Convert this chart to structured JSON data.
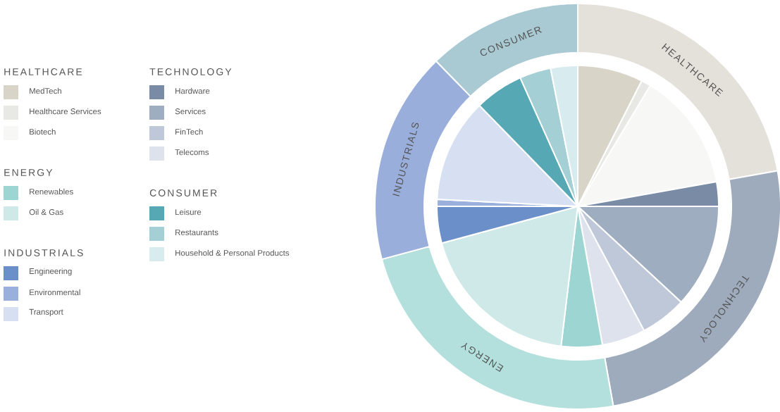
{
  "chart_data": [
    {
      "type": "pie",
      "legend": "left",
      "categories": [
        "MedTech",
        "Healthcare Services",
        "Biotech",
        "Hardware",
        "Services",
        "FinTech",
        "Telecoms",
        "Renewables",
        "Oil & Gas",
        "Engineering",
        "Environmental",
        "Transport",
        "Leisure",
        "Restaurants",
        "Household & Personal Products"
      ],
      "values": [
        7.5,
        1.1,
        13.6,
        2.8,
        11.9,
        5.3,
        5.0,
        4.7,
        18.9,
        4.2,
        0.8,
        11.9,
        5.6,
        3.6,
        3.1
      ],
      "colors": [
        "#d9d4c8",
        "#e8e8e4",
        "#f7f7f5",
        "#7a8ca5",
        "#9fadc0",
        "#bfc8d8",
        "#dde2ec",
        "#9dd5d2",
        "#cfe9e8",
        "#6a8fc9",
        "#9ab0dc",
        "#d6e0f2",
        "#56a8b5",
        "#a4cfd4",
        "#d8ecef"
      ]
    },
    {
      "type": "donut",
      "categories": [
        "HEALTHCARE",
        "TECHNOLOGY",
        "ENERGY",
        "INDUSTRIALS",
        "CONSUMER"
      ],
      "values": [
        22.2,
        25.0,
        23.6,
        16.9,
        12.3
      ],
      "colors": [
        "#e4e0da",
        "#9eabbd",
        "#b3e0dd",
        "#9aaedb",
        "#a9c9d3"
      ]
    }
  ]
}
